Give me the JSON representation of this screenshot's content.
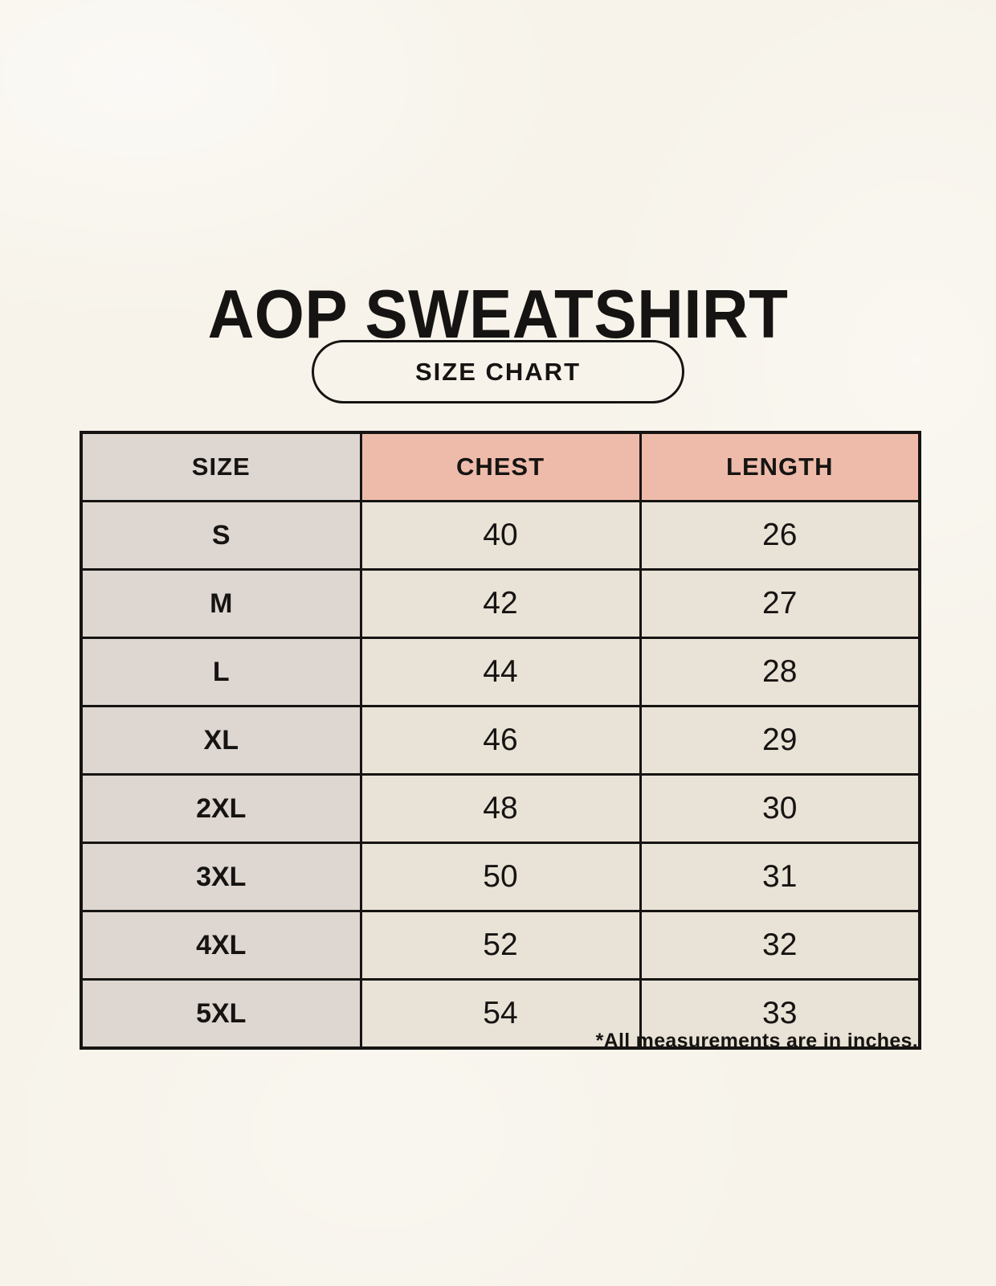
{
  "page": {
    "title": "AOP SWEATSHIRT",
    "size_chart_badge": "SIZE CHART",
    "footnote": "*All measurements are in inches."
  },
  "chart_data": {
    "type": "table",
    "title": "AOP SWEATSHIRT",
    "subtitle": "SIZE CHART",
    "columns": [
      "SIZE",
      "CHEST",
      "LENGTH"
    ],
    "rows": [
      [
        "S",
        40,
        26
      ],
      [
        "M",
        42,
        27
      ],
      [
        "L",
        44,
        28
      ],
      [
        "XL",
        46,
        29
      ],
      [
        "2XL",
        48,
        30
      ],
      [
        "3XL",
        50,
        31
      ],
      [
        "4XL",
        52,
        32
      ],
      [
        "5XL",
        54,
        33
      ]
    ],
    "units": "inches",
    "note": "*All measurements are in inches."
  },
  "colors": {
    "background": "#f7f3ea",
    "accent_header": "#eebbab",
    "size_column": "#ded6d0",
    "value_cell": "#e9e2d6",
    "ink": "#161412"
  }
}
